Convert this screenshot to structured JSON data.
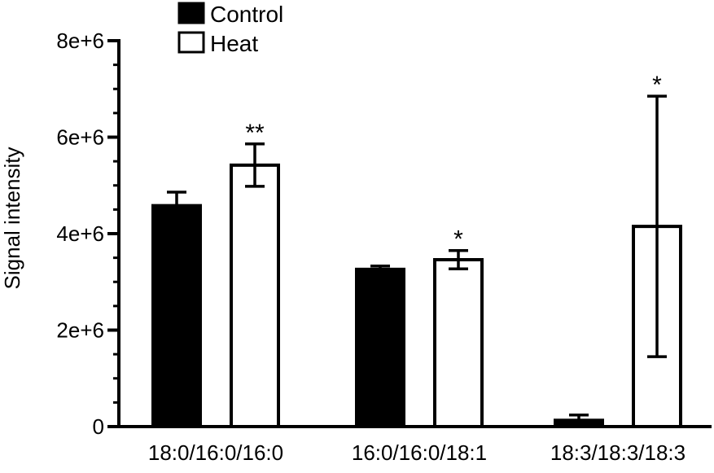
{
  "chart_data": {
    "type": "bar",
    "ylabel": "Signal intensity",
    "xlabel": "",
    "ylim": [
      0,
      8000000
    ],
    "yticks": [
      {
        "value": 0,
        "label": "0"
      },
      {
        "value": 2000000,
        "label": "2e+6"
      },
      {
        "value": 4000000,
        "label": "4e+6"
      },
      {
        "value": 6000000,
        "label": "6e+6"
      },
      {
        "value": 8000000,
        "label": "8e+6"
      }
    ],
    "categories": [
      "18:0/16:0/16:0",
      "16:0/16:0/18:1",
      "18:3/18:3/18:3"
    ],
    "series": [
      {
        "name": "Control",
        "color": "#000000",
        "values": [
          4580000,
          3260000,
          130000
        ],
        "errors": [
          280000,
          70000,
          110000
        ],
        "annotations": [
          "",
          "",
          ""
        ]
      },
      {
        "name": "Heat",
        "color": "#ffffff",
        "values": [
          5420000,
          3460000,
          4150000
        ],
        "errors": [
          440000,
          190000,
          2700000
        ],
        "annotations": [
          "**",
          "*",
          "*"
        ]
      }
    ],
    "legend": "top-left",
    "grid": false
  }
}
